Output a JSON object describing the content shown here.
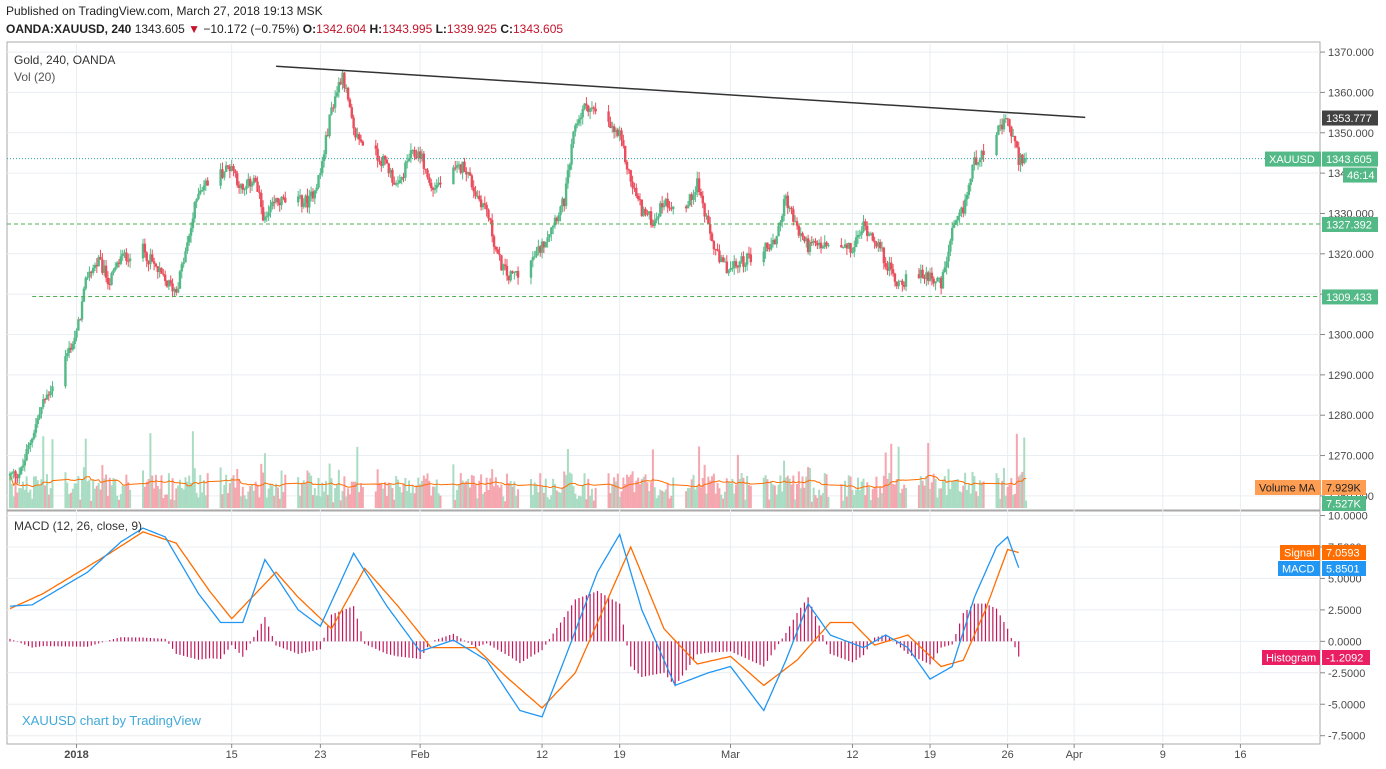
{
  "header": {
    "published": "Published on TradingView.com, March 27, 2018 19:13 MSK",
    "symbol": "OANDA:XAUUSD, 240",
    "last": "1343.605",
    "change_arrow": "▼",
    "change": "−10.172 (−0.75%)",
    "o_label": "O:",
    "o_value": "1342.604",
    "h_label": "H:",
    "h_value": "1343.995",
    "l_label": "L:",
    "l_value": "1339.925",
    "c_label": "C:",
    "c_value": "1343.605"
  },
  "legend": {
    "main": "Gold, 240, OANDA",
    "vol": "Vol (20)",
    "macd": "MACD (12, 26, close, 9)",
    "watermark": "XAUUSD chart by TradingView"
  },
  "price_axis": {
    "ticks": [
      "1370.000",
      "1360.000",
      "1350.000",
      "1340.000",
      "1330.000",
      "1320.000",
      "1310.000",
      "1300.000",
      "1290.000",
      "1280.000",
      "1270.000",
      "1260.000"
    ],
    "tick_values": [
      1370,
      1360,
      1350,
      1340,
      1330,
      1320,
      1310,
      1300,
      1290,
      1280,
      1270,
      1260
    ]
  },
  "macd_axis": {
    "ticks": [
      "10.0000",
      "7.5000",
      "5.0000",
      "2.5000",
      "0.0000",
      "-2.5000",
      "-5.0000",
      "-7.5000"
    ],
    "tick_values": [
      10,
      7.5,
      5,
      2.5,
      0,
      -2.5,
      -5,
      -7.5
    ]
  },
  "time_axis": {
    "labels": [
      "2018",
      "15",
      "23",
      "Feb",
      "12",
      "19",
      "Mar",
      "12",
      "19",
      "26",
      "Apr",
      "9",
      "16"
    ]
  },
  "badges": {
    "trend": {
      "value": "1353.777"
    },
    "symbol": {
      "name": "XAUUSD",
      "value": "1343.605"
    },
    "countdown": {
      "value": "46:14"
    },
    "resistance": {
      "value": "1327.392"
    },
    "support": {
      "value": "1309.433"
    },
    "volume_ma": {
      "name": "Volume MA",
      "value": "7.929K"
    },
    "volume": {
      "value": "7.527K"
    },
    "signal": {
      "name": "Signal",
      "value": "7.0593"
    },
    "macd": {
      "name": "MACD",
      "value": "5.8501"
    },
    "histogram": {
      "name": "Histogram",
      "value": "-1.2092"
    }
  },
  "colors": {
    "up": "#53b987",
    "down": "#eb4d5c",
    "up_vol": "#a9dcc3",
    "down_vol": "#f5a6ae",
    "macd": "#2196f3",
    "signal": "#ff6d00",
    "hist": "#c2185b",
    "grid": "#e9eef2",
    "axis_text": "#4a4a4a",
    "trend": "#333333",
    "level": "#4caf50"
  },
  "chart_data": [
    {
      "type": "candlestick",
      "title": "Gold, 240, OANDA",
      "ylim": [
        1257,
        1372
      ],
      "x_range": [
        "2017-12-26",
        "2018-04-23"
      ],
      "levels": [
        {
          "name": "symbol",
          "value": 1343.605
        },
        {
          "name": "resistance",
          "value": 1327.392
        },
        {
          "name": "support",
          "value": 1309.433
        }
      ],
      "trendline": {
        "from": {
          "date": "2018-01-19",
          "value": 1366.5
        },
        "to": {
          "date": "2018-04-02",
          "value": 1353.8
        }
      },
      "anchors": [
        {
          "date": "2017-12-26",
          "price": 1265
        },
        {
          "date": "2017-12-27",
          "price": 1266
        },
        {
          "date": "2017-12-28",
          "price": 1275
        },
        {
          "date": "2017-12-29",
          "price": 1283
        },
        {
          "date": "2018-01-01",
          "price": 1300
        },
        {
          "date": "2018-01-02",
          "price": 1315
        },
        {
          "date": "2018-01-03",
          "price": 1318
        },
        {
          "date": "2018-01-04",
          "price": 1313
        },
        {
          "date": "2018-01-05",
          "price": 1319
        },
        {
          "date": "2018-01-07",
          "price": 1321
        },
        {
          "date": "2018-01-09",
          "price": 1313
        },
        {
          "date": "2018-01-10",
          "price": 1311
        },
        {
          "date": "2018-01-11",
          "price": 1322
        },
        {
          "date": "2018-01-12",
          "price": 1336
        },
        {
          "date": "2018-01-15",
          "price": 1342
        },
        {
          "date": "2018-01-16",
          "price": 1335
        },
        {
          "date": "2018-01-17",
          "price": 1339
        },
        {
          "date": "2018-01-18",
          "price": 1328
        },
        {
          "date": "2018-01-19",
          "price": 1333
        },
        {
          "date": "2018-01-22",
          "price": 1333
        },
        {
          "date": "2018-01-23",
          "price": 1340
        },
        {
          "date": "2018-01-24",
          "price": 1356
        },
        {
          "date": "2018-01-25",
          "price": 1365
        },
        {
          "date": "2018-01-26",
          "price": 1350
        },
        {
          "date": "2018-01-29",
          "price": 1342
        },
        {
          "date": "2018-01-30",
          "price": 1336
        },
        {
          "date": "2018-01-31",
          "price": 1344
        },
        {
          "date": "2018-02-01",
          "price": 1345
        },
        {
          "date": "2018-02-02",
          "price": 1336
        },
        {
          "date": "2018-02-05",
          "price": 1342
        },
        {
          "date": "2018-02-06",
          "price": 1335
        },
        {
          "date": "2018-02-07",
          "price": 1331
        },
        {
          "date": "2018-02-08",
          "price": 1319
        },
        {
          "date": "2018-02-09",
          "price": 1314
        },
        {
          "date": "2018-02-11",
          "price": 1318
        },
        {
          "date": "2018-02-12",
          "price": 1322
        },
        {
          "date": "2018-02-13",
          "price": 1328
        },
        {
          "date": "2018-02-14",
          "price": 1333
        },
        {
          "date": "2018-02-15",
          "price": 1352
        },
        {
          "date": "2018-02-16",
          "price": 1357
        },
        {
          "date": "2018-02-19",
          "price": 1349
        },
        {
          "date": "2018-02-20",
          "price": 1338
        },
        {
          "date": "2018-02-21",
          "price": 1331
        },
        {
          "date": "2018-02-22",
          "price": 1328
        },
        {
          "date": "2018-02-23",
          "price": 1333
        },
        {
          "date": "2018-02-25",
          "price": 1331
        },
        {
          "date": "2018-02-26",
          "price": 1338
        },
        {
          "date": "2018-02-27",
          "price": 1326
        },
        {
          "date": "2018-02-28",
          "price": 1318
        },
        {
          "date": "2018-03-01",
          "price": 1316
        },
        {
          "date": "2018-03-02",
          "price": 1318
        },
        {
          "date": "2018-03-05",
          "price": 1323
        },
        {
          "date": "2018-03-06",
          "price": 1334
        },
        {
          "date": "2018-03-07",
          "price": 1326
        },
        {
          "date": "2018-03-08",
          "price": 1322
        },
        {
          "date": "2018-03-09",
          "price": 1322
        },
        {
          "date": "2018-03-12",
          "price": 1321
        },
        {
          "date": "2018-03-13",
          "price": 1327
        },
        {
          "date": "2018-03-14",
          "price": 1324
        },
        {
          "date": "2018-03-15",
          "price": 1318
        },
        {
          "date": "2018-03-16",
          "price": 1313
        },
        {
          "date": "2018-03-19",
          "price": 1315
        },
        {
          "date": "2018-03-20",
          "price": 1312
        },
        {
          "date": "2018-03-21",
          "price": 1325
        },
        {
          "date": "2018-03-22",
          "price": 1331
        },
        {
          "date": "2018-03-23",
          "price": 1343
        },
        {
          "date": "2018-03-26",
          "price": 1353
        },
        {
          "date": "2018-03-27",
          "price": 1343.6
        }
      ]
    },
    {
      "type": "bar",
      "title": "Vol (20)",
      "series": [
        {
          "name": "Volume MA",
          "last": 7.929
        }
      ],
      "last_volume_k": 7.527,
      "ymax_k": 45
    },
    {
      "type": "line",
      "title": "MACD (12, 26, close, 9)",
      "ylim": [
        -8,
        10.2
      ],
      "series": [
        {
          "name": "MACD",
          "last": 5.8501,
          "points": [
            [
              "2017-12-26",
              2.8
            ],
            [
              "2017-12-28",
              2.9
            ],
            [
              "2018-01-02",
              5.5
            ],
            [
              "2018-01-05",
              7.9
            ],
            [
              "2018-01-07",
              9.0
            ],
            [
              "2018-01-09",
              8.3
            ],
            [
              "2018-01-12",
              3.8
            ],
            [
              "2018-01-14",
              1.5
            ],
            [
              "2018-01-16",
              1.5
            ],
            [
              "2018-01-18",
              6.5
            ],
            [
              "2018-01-21",
              2.5
            ],
            [
              "2018-01-23",
              1.2
            ],
            [
              "2018-01-26",
              7.0
            ],
            [
              "2018-01-29",
              2.8
            ],
            [
              "2018-02-01",
              -0.8
            ],
            [
              "2018-02-04",
              0.1
            ],
            [
              "2018-02-07",
              -1.5
            ],
            [
              "2018-02-10",
              -5.5
            ],
            [
              "2018-02-12",
              -6.0
            ],
            [
              "2018-02-14",
              -1.5
            ],
            [
              "2018-02-17",
              5.5
            ],
            [
              "2018-02-19",
              8.5
            ],
            [
              "2018-02-21",
              2.5
            ],
            [
              "2018-02-24",
              -3.5
            ],
            [
              "2018-02-27",
              -2.5
            ],
            [
              "2018-03-01",
              -2.0
            ],
            [
              "2018-03-04",
              -5.5
            ],
            [
              "2018-03-06",
              -1.5
            ],
            [
              "2018-03-08",
              3.0
            ],
            [
              "2018-03-10",
              0.5
            ],
            [
              "2018-03-13",
              -0.5
            ],
            [
              "2018-03-15",
              0.5
            ],
            [
              "2018-03-17",
              -0.5
            ],
            [
              "2018-03-19",
              -3.0
            ],
            [
              "2018-03-21",
              -2.0
            ],
            [
              "2018-03-23",
              3.5
            ],
            [
              "2018-03-25",
              7.5
            ],
            [
              "2018-03-26",
              8.3
            ],
            [
              "2018-03-27",
              5.85
            ]
          ]
        },
        {
          "name": "Signal",
          "last": 7.0593,
          "points": [
            [
              "2017-12-26",
              2.6
            ],
            [
              "2017-12-29",
              3.8
            ],
            [
              "2018-01-04",
              7.0
            ],
            [
              "2018-01-07",
              8.7
            ],
            [
              "2018-01-10",
              7.8
            ],
            [
              "2018-01-13",
              4.0
            ],
            [
              "2018-01-15",
              1.8
            ],
            [
              "2018-01-19",
              5.5
            ],
            [
              "2018-01-21",
              3.5
            ],
            [
              "2018-01-24",
              1.0
            ],
            [
              "2018-01-27",
              5.8
            ],
            [
              "2018-01-30",
              2.8
            ],
            [
              "2018-02-02",
              -0.5
            ],
            [
              "2018-02-06",
              -0.5
            ],
            [
              "2018-02-09",
              -3.0
            ],
            [
              "2018-02-12",
              -5.3
            ],
            [
              "2018-02-15",
              -2.5
            ],
            [
              "2018-02-17",
              1.5
            ],
            [
              "2018-02-20",
              7.5
            ],
            [
              "2018-02-23",
              1.0
            ],
            [
              "2018-02-26",
              -1.8
            ],
            [
              "2018-03-01",
              -1.2
            ],
            [
              "2018-03-04",
              -3.5
            ],
            [
              "2018-03-07",
              -1.5
            ],
            [
              "2018-03-10",
              1.5
            ],
            [
              "2018-03-12",
              1.5
            ],
            [
              "2018-03-14",
              -0.3
            ],
            [
              "2018-03-17",
              0.5
            ],
            [
              "2018-03-20",
              -2.0
            ],
            [
              "2018-03-22",
              -1.5
            ],
            [
              "2018-03-24",
              2.5
            ],
            [
              "2018-03-26",
              7.3
            ],
            [
              "2018-03-27",
              7.06
            ]
          ]
        }
      ]
    }
  ]
}
